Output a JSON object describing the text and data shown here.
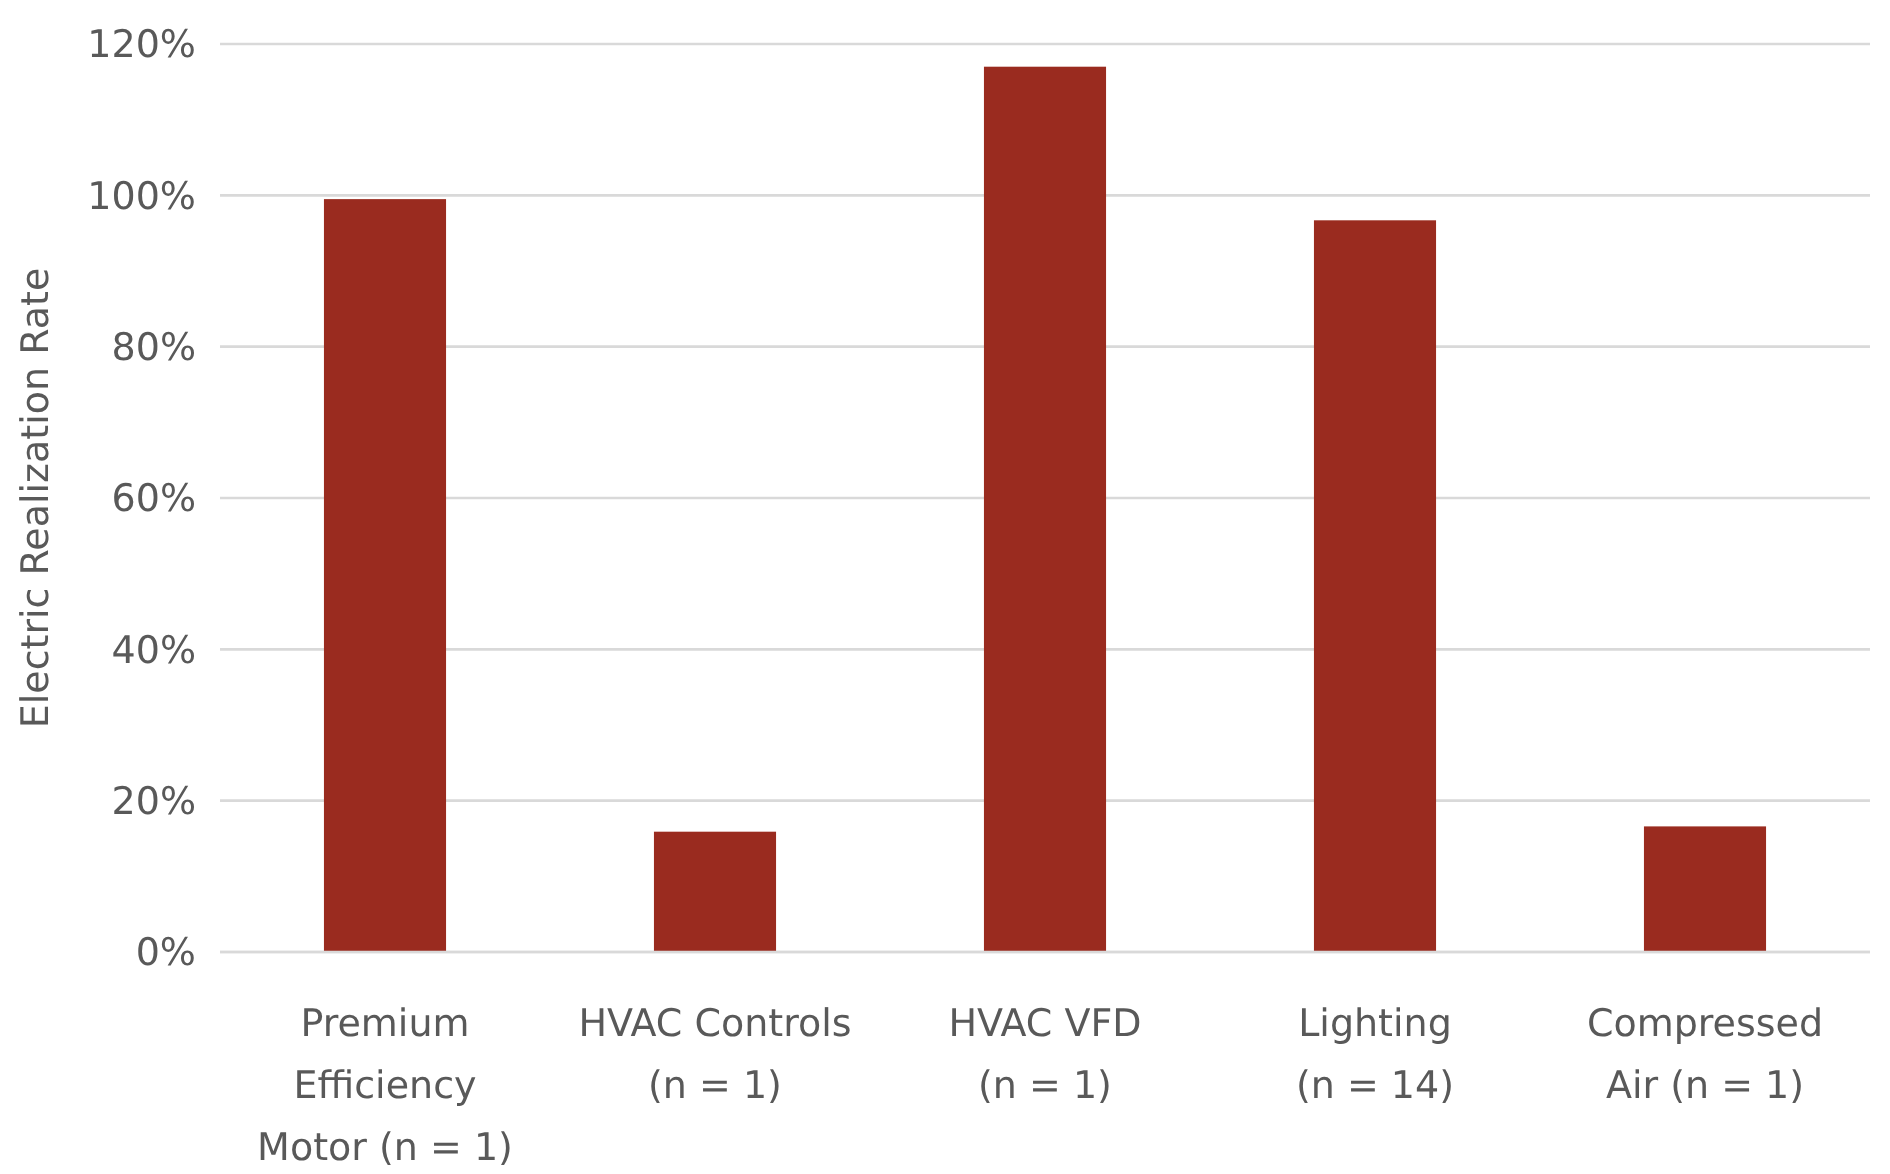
{
  "chart_data": {
    "type": "bar",
    "ylabel": "Electric Realization Rate",
    "categories": [
      "Premium Efficiency Motor (n = 1)",
      "HVAC Controls (n = 1)",
      "HVAC VFD (n = 1)",
      "Lighting (n = 14)",
      "Compressed Air (n = 1)"
    ],
    "values": [
      99.5,
      15.9,
      117,
      96.7,
      16.6
    ],
    "color": "#9a2b1f",
    "ylim": [
      0,
      120
    ],
    "yticks": [
      {
        "value": 0,
        "label": "0%"
      },
      {
        "value": 20,
        "label": "20%"
      },
      {
        "value": 40,
        "label": "40%"
      },
      {
        "value": 60,
        "label": "60%"
      },
      {
        "value": 80,
        "label": "80%"
      },
      {
        "value": 100,
        "label": "100%"
      },
      {
        "value": 120,
        "label": "120%"
      }
    ],
    "grid": "y"
  }
}
